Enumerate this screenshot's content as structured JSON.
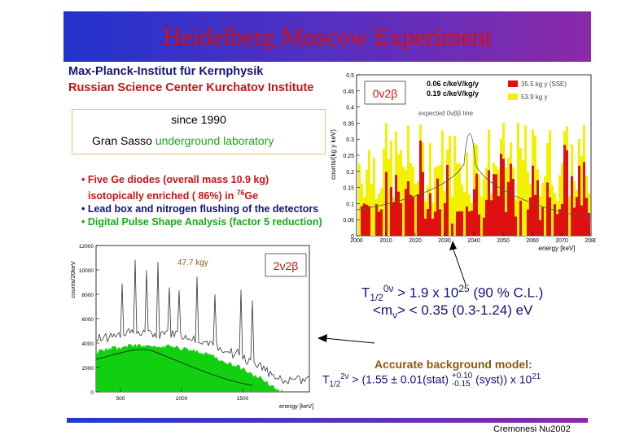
{
  "title": "Heidelberg Moscow Experiment",
  "institutes": [
    "Max-Planck-Institut für Kernphysik",
    "Russian Science Center Kurchatov Institute"
  ],
  "box": {
    "since": "since 1990",
    "location": "Gran Sasso",
    "lab": "underground laboratory"
  },
  "bullets": [
    {
      "prefix": "• Five Ge diodes (overall mass 10.9 kg)",
      "color": "#c81414"
    },
    {
      "prefix": "isotopically enriched ( 86%) in ",
      "sup": "76",
      "suffix": "Ge",
      "color": "#c81414"
    },
    {
      "prefix": "• Lead box and nitrogen flushing of the detectors",
      "color": "#14147a"
    },
    {
      "prefix": "• Digital Pulse Shape Analysis (factor 5 reduction)",
      "color": "#18a818"
    }
  ],
  "spectrum_top": {
    "badge": "0ν2β",
    "res_lines": [
      "0.06 c/keV/kg/y",
      "0.19 c/keV/kg/y"
    ],
    "annotation": "expected 0νββ line",
    "legend": [
      "35.5 kg y (SSE)",
      "53.9 kg y"
    ],
    "colors": {
      "red": "#e01010",
      "yellow": "#f2f200"
    },
    "ylabel": "counts/(kg y keV)",
    "xlabel": "energy [keV]",
    "yticks": [
      "0.5",
      "0.45",
      "0.4",
      "0.35",
      "0.3",
      "0.25",
      "0.2",
      "0.15",
      "0.1",
      "0.05",
      "0"
    ],
    "xticks": [
      "2000",
      "2010",
      "2020",
      "2030",
      "2040",
      "2050",
      "2060",
      "2070",
      "2080"
    ]
  },
  "spectrum_bottom": {
    "badge": "2ν2β",
    "mass": "47.7 kgy",
    "ylabel": "counts/20keV",
    "xlabel": "energy [keV]",
    "yticks": [
      "12000",
      "10000",
      "8000",
      "6000",
      "4000",
      "2000",
      "0"
    ],
    "xticks": [
      "500",
      "1000",
      "1500"
    ],
    "colors": {
      "fill": "#10d010"
    }
  },
  "results": {
    "t0_label": "T",
    "t0_sub": "1/2",
    "t0_sup": "0ν",
    "t0_value": " > 1.9 x 10",
    "t0_exp": "25",
    "t0_cl": " (90 % C.L.)",
    "mass_pre": "<m",
    "mass_sub": "ν",
    "mass_post": "> < 0.35 (0.3-1.24) eV",
    "bg_model": "Accurate background model:",
    "t2_label": "T",
    "t2_sub": "1/2",
    "t2_sup": "2ν",
    "t2_value": " > (1.55 ± 0.01(stat) ",
    "t2_plus": "+0.10",
    "t2_minus": "-0.15",
    "t2_tail": " (syst)) x 10",
    "t2_exp": "21"
  },
  "credit": "Cremonesi Nu2002"
}
